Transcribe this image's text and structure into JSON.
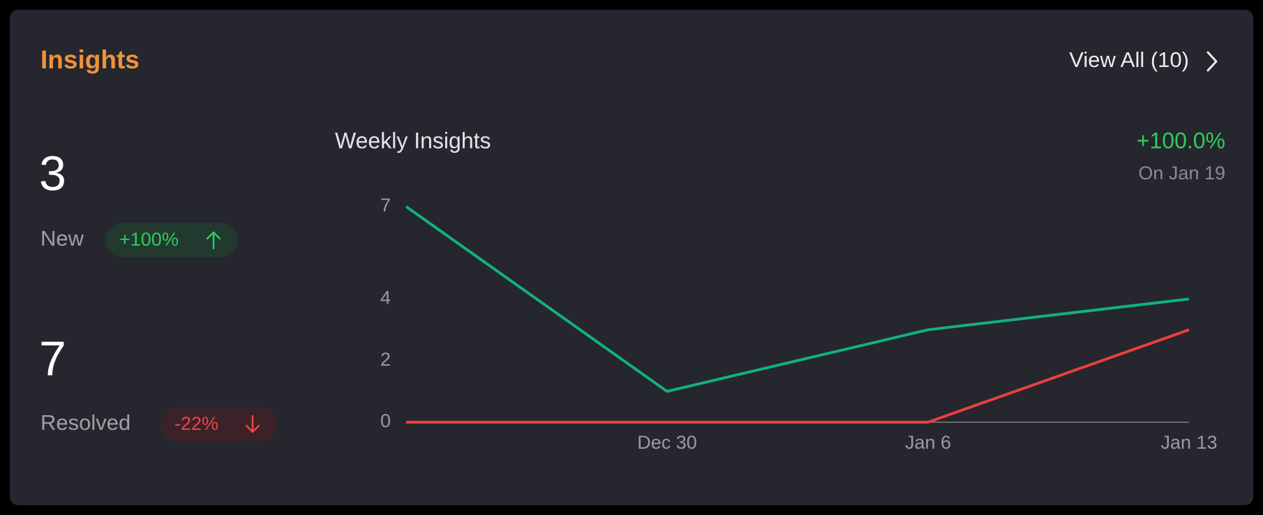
{
  "header": {
    "title": "Insights",
    "link": "View All (10)"
  },
  "stats": [
    {
      "value": 3,
      "label": "New",
      "change": "+100%"
    },
    {
      "value": 7,
      "label": "Resolved",
      "change": "-22%"
    }
  ],
  "chart_data": {
    "type": "line",
    "title": "Weekly Insights",
    "subtitle": "+100.0%",
    "note": "On Jan 19",
    "categories": [
      null,
      "Dec 30",
      "Jan 6",
      "Jan 13"
    ],
    "series": [
      {
        "color": "#13b07f",
        "values": [
          7,
          1,
          3,
          4
        ]
      },
      {
        "color": "#e8403f",
        "values": [
          0,
          0,
          0,
          3
        ]
      }
    ],
    "ylim": [
      0,
      7
    ],
    "yticks": [
      0,
      2,
      4,
      7
    ],
    "grid": false
  }
}
